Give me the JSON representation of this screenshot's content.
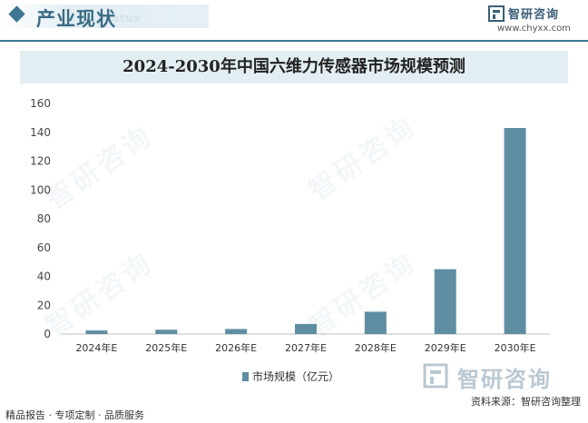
{
  "header": {
    "section_title": "产业现状",
    "section_subtitle": "Status",
    "brand_name": "智研咨询",
    "brand_url": "www.chyxx.com"
  },
  "chart_data": {
    "type": "bar",
    "title": "2024-2030年中国六维力传感器市场规模预测",
    "categories": [
      "2024年E",
      "2025年E",
      "2026年E",
      "2027年E",
      "2028年E",
      "2029年E",
      "2030年E"
    ],
    "series": [
      {
        "name": "市场规模（亿元）",
        "values": [
          2.5,
          3,
          3.5,
          7,
          15.5,
          45,
          143
        ]
      }
    ],
    "xlabel": "",
    "ylabel": "",
    "ylim": [
      0,
      160
    ],
    "yticks": [
      0,
      20,
      40,
      60,
      80,
      100,
      120,
      140,
      160
    ],
    "grid": false,
    "legend_position": "bottom",
    "bar_color": "#5f8ea3"
  },
  "footer": {
    "left_text": "精品报告 · 专项定制 · 品质服务",
    "source_text": "资料来源：智研咨询整理",
    "watermark_brand": "智研咨询"
  },
  "watermark_text": "智研咨询"
}
